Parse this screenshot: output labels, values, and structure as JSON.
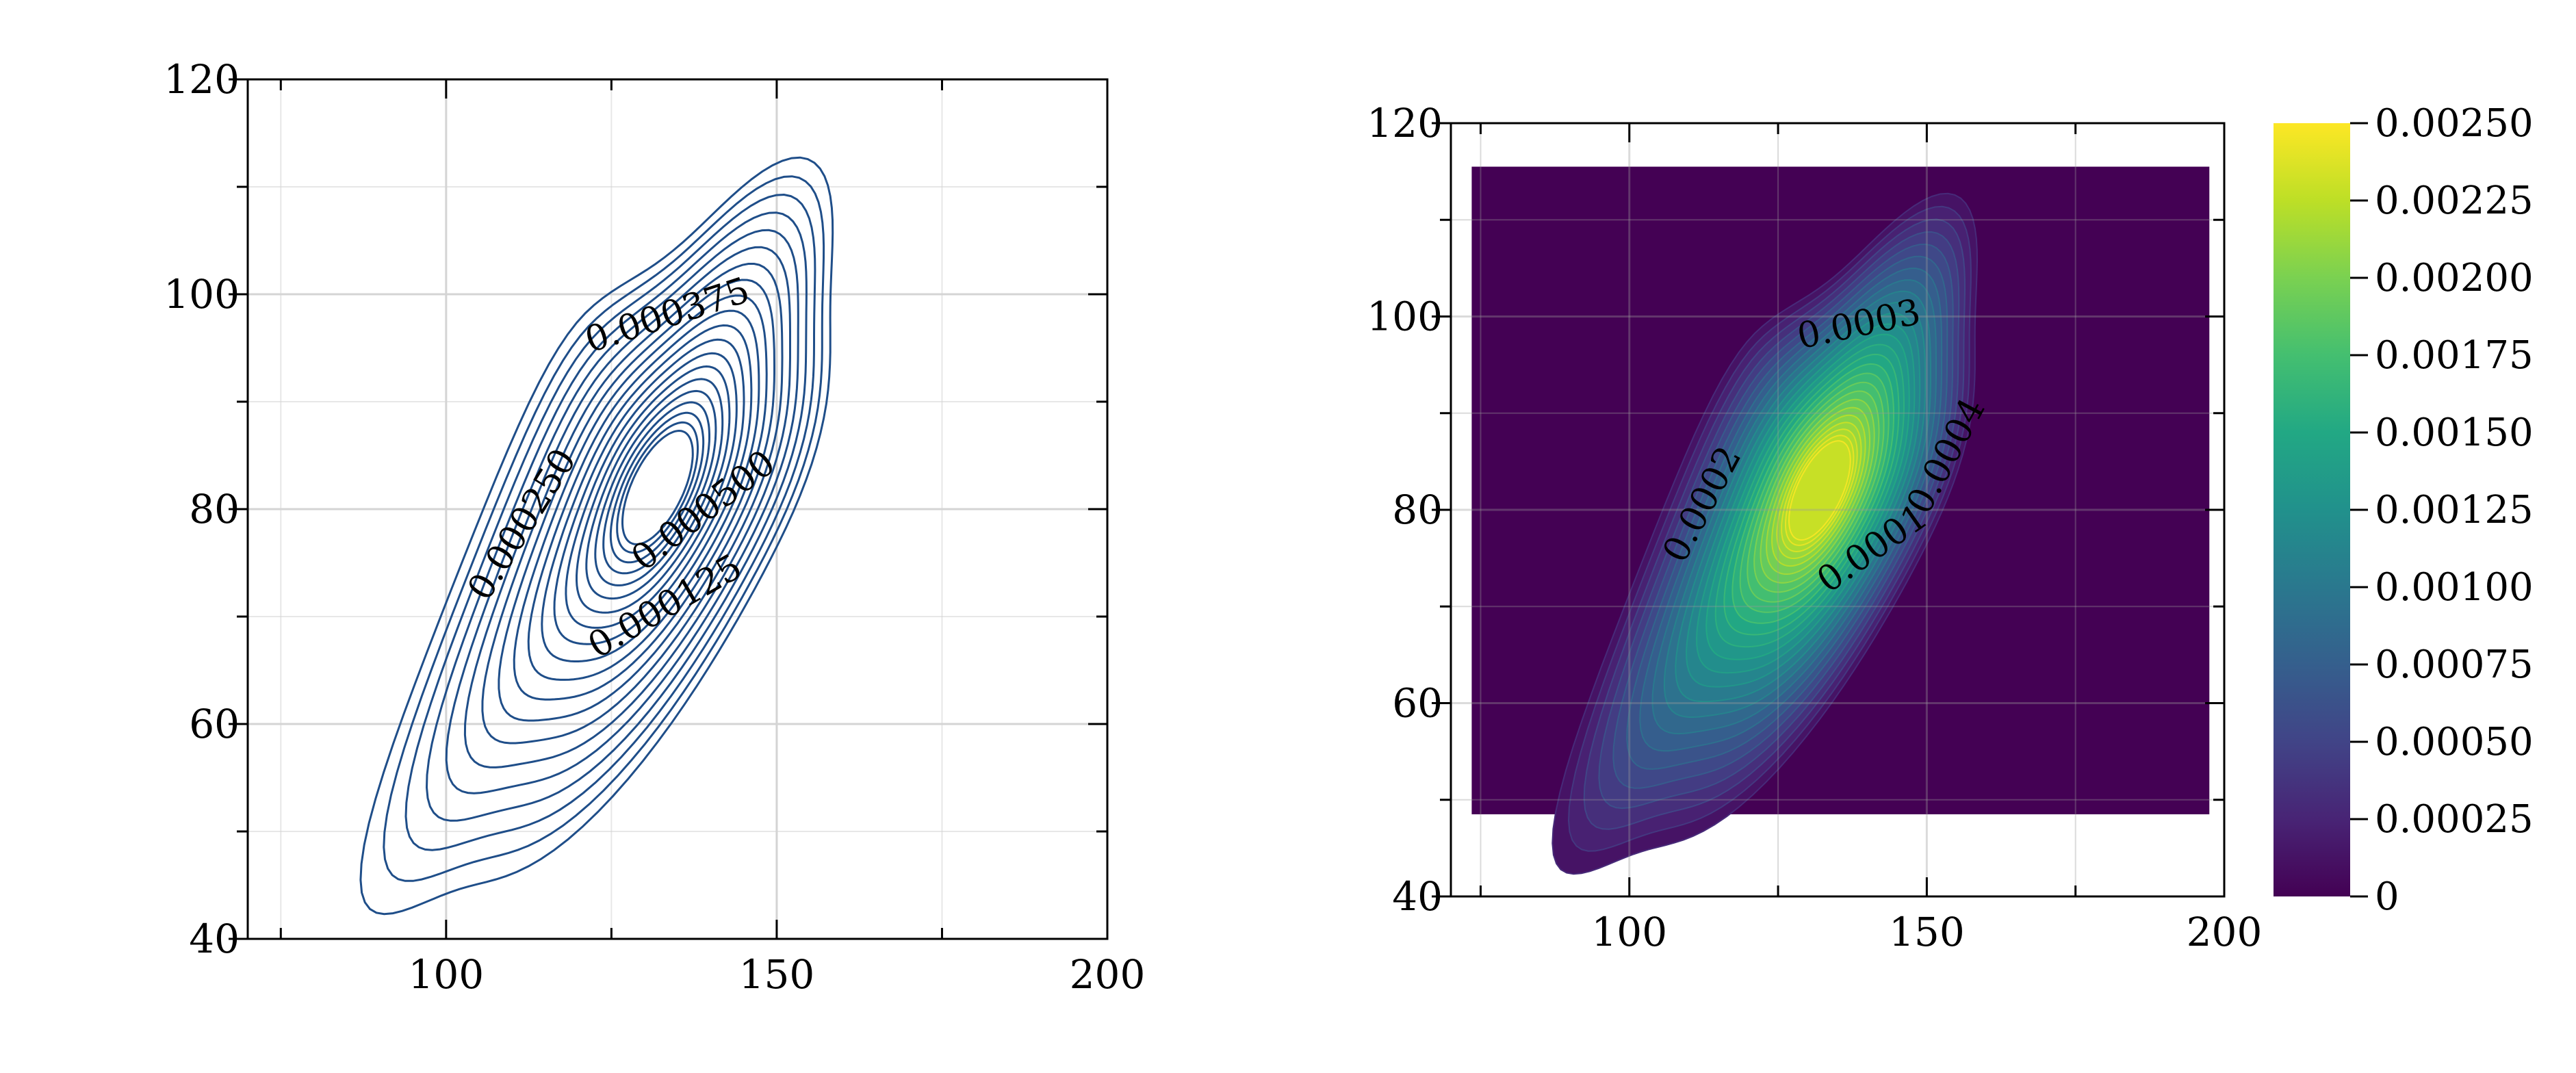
{
  "chart_data": [
    {
      "type": "contour",
      "title": "",
      "xlabel": "",
      "ylabel": "",
      "xlim": [
        70,
        200
      ],
      "ylim": [
        40,
        120
      ],
      "xticks": [
        100,
        150,
        200
      ],
      "yticks": [
        40,
        60,
        80,
        100,
        120
      ],
      "xtick_labels": [
        "100",
        "150",
        "200"
      ],
      "ytick_labels": [
        "40",
        "60",
        "80",
        "100",
        "120"
      ],
      "grid": true,
      "line_color": "#1f4e89",
      "peak": {
        "x": 132,
        "y": 82
      },
      "contour_labels": [
        "0.000375",
        "0.000250",
        "0.000500",
        "0.000125"
      ]
    },
    {
      "type": "filled-contour",
      "title": "",
      "xlabel": "",
      "ylabel": "",
      "xlim": [
        70,
        200
      ],
      "ylim": [
        40,
        120
      ],
      "xticks": [
        100,
        150,
        200
      ],
      "yticks": [
        40,
        60,
        80,
        100,
        120
      ],
      "xtick_labels": [
        "100",
        "150",
        "200"
      ],
      "ytick_labels": [
        "40",
        "60",
        "80",
        "100",
        "120"
      ],
      "grid": true,
      "colormap": "viridis",
      "background_color": "#440154",
      "peak": {
        "x": 132,
        "y": 82
      },
      "contour_labels": [
        "0.0003",
        "0.0002",
        "0.0004",
        "0.0001"
      ],
      "colorbar": {
        "range": [
          0,
          0.0025
        ],
        "ticks": [
          "0",
          "0.00025",
          "0.00050",
          "0.00075",
          "0.00100",
          "0.00125",
          "0.00150",
          "0.00175",
          "0.00200",
          "0.00225",
          "0.00250"
        ]
      }
    }
  ]
}
